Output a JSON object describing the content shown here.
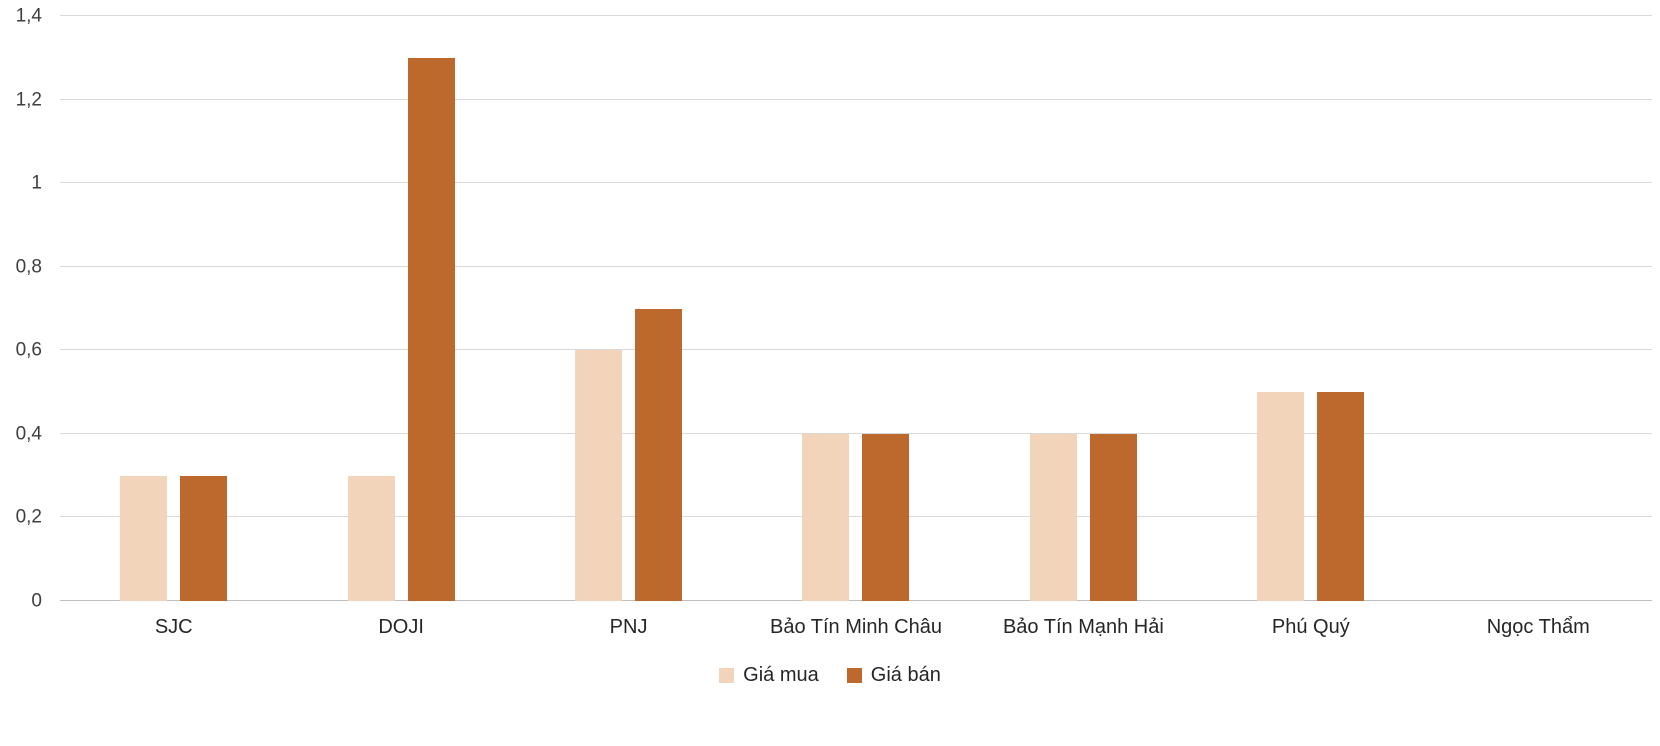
{
  "chart_data": {
    "type": "bar",
    "title": "",
    "xlabel": "",
    "ylabel": "",
    "categories": [
      "SJC",
      "DOJI",
      "PNJ",
      "Bảo Tín Minh Châu",
      "Bảo Tín Mạnh Hải",
      "Phú Quý",
      "Ngọc Thẩm"
    ],
    "series": [
      {
        "name": "Giá mua",
        "color": "#f2d4ba",
        "values": [
          0.3,
          0.3,
          0.6,
          0.4,
          0.4,
          0.5,
          0
        ]
      },
      {
        "name": "Giá bán",
        "color": "#bd682c",
        "values": [
          0.3,
          1.3,
          0.7,
          0.4,
          0.4,
          0.5,
          0
        ]
      }
    ],
    "ylim": [
      0,
      1.4
    ],
    "yticks": [
      0,
      0.2,
      0.4,
      0.6,
      0.8,
      1,
      1.2,
      1.4
    ],
    "ytick_labels": [
      "0",
      "0,2",
      "0,4",
      "0,6",
      "0,8",
      "1",
      "1,2",
      "1,4"
    ],
    "grid": true,
    "legend_position": "bottom",
    "colors": {
      "gridline": "#d9d9d9",
      "axis_line": "#bfbfbf",
      "tick_text": "#3f3f3f",
      "label_text": "#262626",
      "background": "#ffffff"
    }
  }
}
